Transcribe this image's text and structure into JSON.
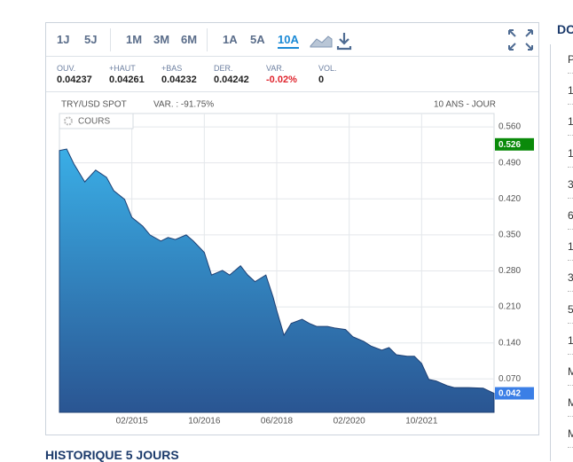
{
  "toolbar": {
    "periods": [
      [
        "1J",
        "5J"
      ],
      [
        "1M",
        "3M",
        "6M"
      ],
      [
        "1A",
        "5A",
        "10A"
      ]
    ],
    "active": "10A"
  },
  "stats": [
    {
      "label": "OUV.",
      "value": "0.04237"
    },
    {
      "label": "+HAUT",
      "value": "0.04261"
    },
    {
      "label": "+BAS",
      "value": "0.04232"
    },
    {
      "label": "DER.",
      "value": "0.04242"
    },
    {
      "label": "VAR.",
      "value": "-0.02%"
    },
    {
      "label": "VOL.",
      "value": "0"
    }
  ],
  "chart_data": {
    "type": "area",
    "title": "TRY/USD SPOT",
    "subtitle": "VAR. : -91.75%",
    "period_label": "10 ANS - JOUR",
    "series": [
      {
        "name": "COURS",
        "color": "#2f86c8",
        "x": [
          "06/2013",
          "08/2013",
          "10/2013",
          "01/2014",
          "04/2014",
          "07/2014",
          "09/2014",
          "12/2014",
          "02/2015",
          "05/2015",
          "07/2015",
          "10/2015",
          "12/2015",
          "02/2016",
          "05/2016",
          "07/2016",
          "10/2016",
          "12/2016",
          "03/2017",
          "05/2017",
          "08/2017",
          "10/2017",
          "12/2017",
          "03/2018",
          "05/2018",
          "06/2018",
          "08/2018",
          "10/2018",
          "01/2019",
          "03/2019",
          "05/2019",
          "08/2019",
          "10/2019",
          "01/2020",
          "03/2020",
          "06/2020",
          "08/2020",
          "11/2020",
          "01/2021",
          "03/2021",
          "06/2021",
          "08/2021",
          "10/2021",
          "12/2021",
          "02/2022",
          "05/2022",
          "07/2022",
          "11/2022",
          "03/2023",
          "06/2023"
        ],
        "values": [
          0.514,
          0.517,
          0.488,
          0.453,
          0.476,
          0.462,
          0.436,
          0.419,
          0.384,
          0.367,
          0.35,
          0.338,
          0.345,
          0.341,
          0.35,
          0.338,
          0.316,
          0.272,
          0.281,
          0.272,
          0.29,
          0.272,
          0.259,
          0.272,
          0.229,
          0.203,
          0.155,
          0.178,
          0.186,
          0.178,
          0.172,
          0.172,
          0.169,
          0.166,
          0.152,
          0.143,
          0.134,
          0.126,
          0.131,
          0.117,
          0.114,
          0.114,
          0.1,
          0.069,
          0.066,
          0.057,
          0.053,
          0.053,
          0.052,
          0.042
        ]
      }
    ],
    "xlim": [
      "06/2013",
      "06/2023"
    ],
    "xticks": [
      "02/2015",
      "10/2016",
      "06/2018",
      "02/2020",
      "10/2021"
    ],
    "ylim": [
      0.005,
      0.586
    ],
    "yticks": [
      {
        "value": 0.07,
        "label": "0.070"
      },
      {
        "value": 0.14,
        "label": "0.140"
      },
      {
        "value": 0.21,
        "label": "0.210"
      },
      {
        "value": 0.28,
        "label": "0.280"
      },
      {
        "value": 0.35,
        "label": "0.350"
      },
      {
        "value": 0.42,
        "label": "0.420"
      },
      {
        "value": 0.49,
        "label": "0.490"
      },
      {
        "value": 0.56,
        "label": "0.560"
      }
    ],
    "highlight_value": 0.526,
    "highlight_color": "#0a8a0a",
    "last_value": 0.042,
    "last_color": "#3b7fe6",
    "grid": true
  },
  "sidebar": {
    "title": "DC",
    "rows": [
      "P",
      "1'",
      "1",
      "1",
      "3",
      "6",
      "1",
      "3",
      "5",
      "1(",
      "M",
      "M",
      "M"
    ]
  },
  "section_title": "HISTORIQUE 5 JOURS"
}
